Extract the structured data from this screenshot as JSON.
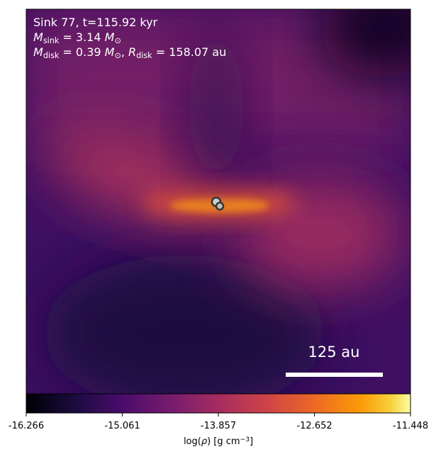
{
  "chart_data": {
    "type": "image",
    "annotations": [
      [
        {
          "text": "Sink 77, t=115.92 kyr",
          "style": "normal"
        }
      ],
      [
        {
          "text": "M",
          "style": "italic"
        },
        {
          "text": "sink",
          "style": "sub"
        },
        {
          "text": " = 3.14 ",
          "style": "normal"
        },
        {
          "text": "M",
          "style": "italic"
        },
        {
          "text": "⊙",
          "style": "sub"
        }
      ],
      [
        {
          "text": "M",
          "style": "italic"
        },
        {
          "text": "disk",
          "style": "sub"
        },
        {
          "text": " = 0.39 ",
          "style": "normal"
        },
        {
          "text": "M",
          "style": "italic"
        },
        {
          "text": "⊙",
          "style": "sub"
        },
        {
          "text": ", ",
          "style": "normal"
        },
        {
          "text": "R",
          "style": "italic"
        },
        {
          "text": "disk",
          "style": "sub"
        },
        {
          "text": " = 158.07 au",
          "style": "normal"
        }
      ]
    ],
    "scalebar_label": "125 au",
    "colorbar": {
      "lim": [
        -16.266,
        -11.448
      ],
      "ticks": [
        -16.266,
        -15.061,
        -13.857,
        -12.652,
        -11.448
      ],
      "label": [
        {
          "text": "log(",
          "style": "normal"
        },
        {
          "text": "ρ",
          "style": "italic"
        },
        {
          "text": ") [g cm",
          "style": "normal"
        },
        {
          "text": "−3",
          "style": "sup"
        },
        {
          "text": "]",
          "style": "normal"
        }
      ]
    }
  }
}
